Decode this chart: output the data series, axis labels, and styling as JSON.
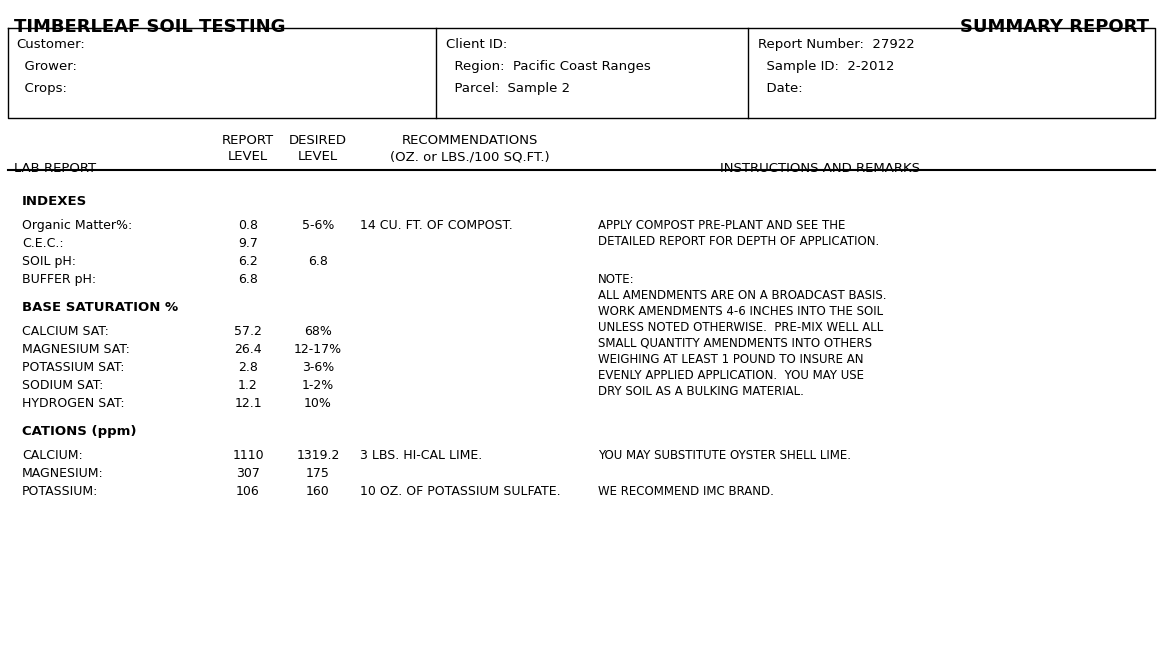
{
  "title_left": "TIMBERLEAF SOIL TESTING",
  "title_right": "SUMMARY REPORT",
  "header": {
    "col1": [
      "Customer:",
      "  Grower:",
      "  Crops:"
    ],
    "col2": [
      "Client ID:",
      "  Region:  Pacific Coast Ranges",
      "  Parcel:  Sample 2"
    ],
    "col3": [
      "Report Number:  27922",
      "  Sample ID:  2-2012",
      "  Date:"
    ]
  },
  "sections": [
    {
      "section_title": "INDEXES",
      "rows": [
        {
          "label": "Organic Matter%:",
          "report": "0.8",
          "desired": "5-6%",
          "rec": "14 CU. FT. OF COMPOST.",
          "remarks": "APPLY COMPOST PRE-PLANT AND SEE THE\nDETAILED REPORT FOR DEPTH OF APPLICATION."
        },
        {
          "label": "C.E.C.:",
          "report": "9.7",
          "desired": "",
          "rec": "",
          "remarks": ""
        },
        {
          "label": "SOIL pH:",
          "report": "6.2",
          "desired": "6.8",
          "rec": "",
          "remarks": ""
        },
        {
          "label": "BUFFER pH:",
          "report": "6.8",
          "desired": "",
          "rec": "",
          "remarks": "NOTE:\nALL AMENDMENTS ARE ON A BROADCAST BASIS.\nWORK AMENDMENTS 4-6 INCHES INTO THE SOIL\nUNLESS NOTED OTHERWISE.  PRE-MIX WELL ALL\nSMALL QUANTITY AMENDMENTS INTO OTHERS\nWEIGHING AT LEAST 1 POUND TO INSURE AN\nEVENLY APPLIED APPLICATION.  YOU MAY USE\nDRY SOIL AS A BULKING MATERIAL."
        }
      ]
    },
    {
      "section_title": "BASE SATURATION %",
      "rows": [
        {
          "label": "CALCIUM SAT:",
          "report": "57.2",
          "desired": "68%",
          "rec": "",
          "remarks": ""
        },
        {
          "label": "MAGNESIUM SAT:",
          "report": "26.4",
          "desired": "12-17%",
          "rec": "",
          "remarks": ""
        },
        {
          "label": "POTASSIUM SAT:",
          "report": "2.8",
          "desired": "3-6%",
          "rec": "",
          "remarks": ""
        },
        {
          "label": "SODIUM SAT:",
          "report": "1.2",
          "desired": "1-2%",
          "rec": "",
          "remarks": ""
        },
        {
          "label": "HYDROGEN SAT:",
          "report": "12.1",
          "desired": "10%",
          "rec": "",
          "remarks": ""
        }
      ]
    },
    {
      "section_title": "CATIONS (ppm)",
      "rows": [
        {
          "label": "CALCIUM:",
          "report": "1110",
          "desired": "1319.2",
          "rec": "3 LBS. HI-CAL LIME.",
          "remarks": "YOU MAY SUBSTITUTE OYSTER SHELL LIME."
        },
        {
          "label": "MAGNESIUM:",
          "report": "307",
          "desired": "175",
          "rec": "",
          "remarks": ""
        },
        {
          "label": "POTASSIUM:",
          "report": "106",
          "desired": "160",
          "rec": "10 OZ. OF POTASSIUM SULFATE.",
          "remarks": "WE RECOMMEND IMC BRAND."
        }
      ]
    }
  ],
  "bg_color": "#ffffff",
  "text_color": "#000000"
}
